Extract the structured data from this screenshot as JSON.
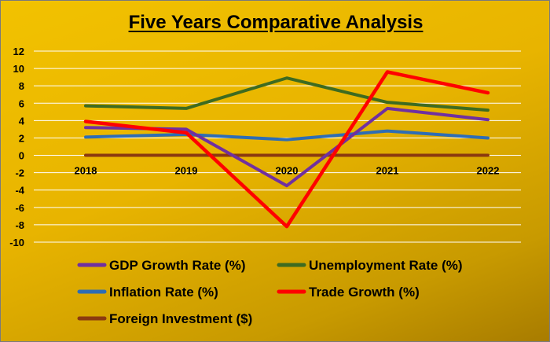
{
  "chart_data": {
    "type": "line",
    "title": "Five Years Comparative Analysis",
    "categories": [
      "2018",
      "2019",
      "2020",
      "2021",
      "2022"
    ],
    "ylim": [
      -10,
      12
    ],
    "yticks": [
      12,
      10,
      8,
      6,
      4,
      2,
      0,
      -2,
      -4,
      -6,
      -8,
      -10
    ],
    "grid": true,
    "legend_position": "bottom",
    "series": [
      {
        "name": "GDP Growth Rate (%)",
        "color": "#7030A0",
        "values": [
          3.2,
          3.0,
          -3.5,
          5.4,
          4.1
        ]
      },
      {
        "name": "Unemployment Rate (%)",
        "color": "#3E6B20",
        "values": [
          5.7,
          5.4,
          8.9,
          6.1,
          5.2
        ]
      },
      {
        "name": "Inflation Rate (%)",
        "color": "#2E6DB4",
        "values": [
          2.1,
          2.4,
          1.8,
          2.8,
          2.0
        ]
      },
      {
        "name": "Trade Growth (%)",
        "color": "#FF0000",
        "values": [
          3.9,
          2.6,
          -8.2,
          9.6,
          7.2
        ]
      },
      {
        "name": "Foreign Investment ($)",
        "color": "#8B3A0F",
        "values": [
          0,
          0,
          0,
          0,
          0
        ]
      }
    ]
  }
}
